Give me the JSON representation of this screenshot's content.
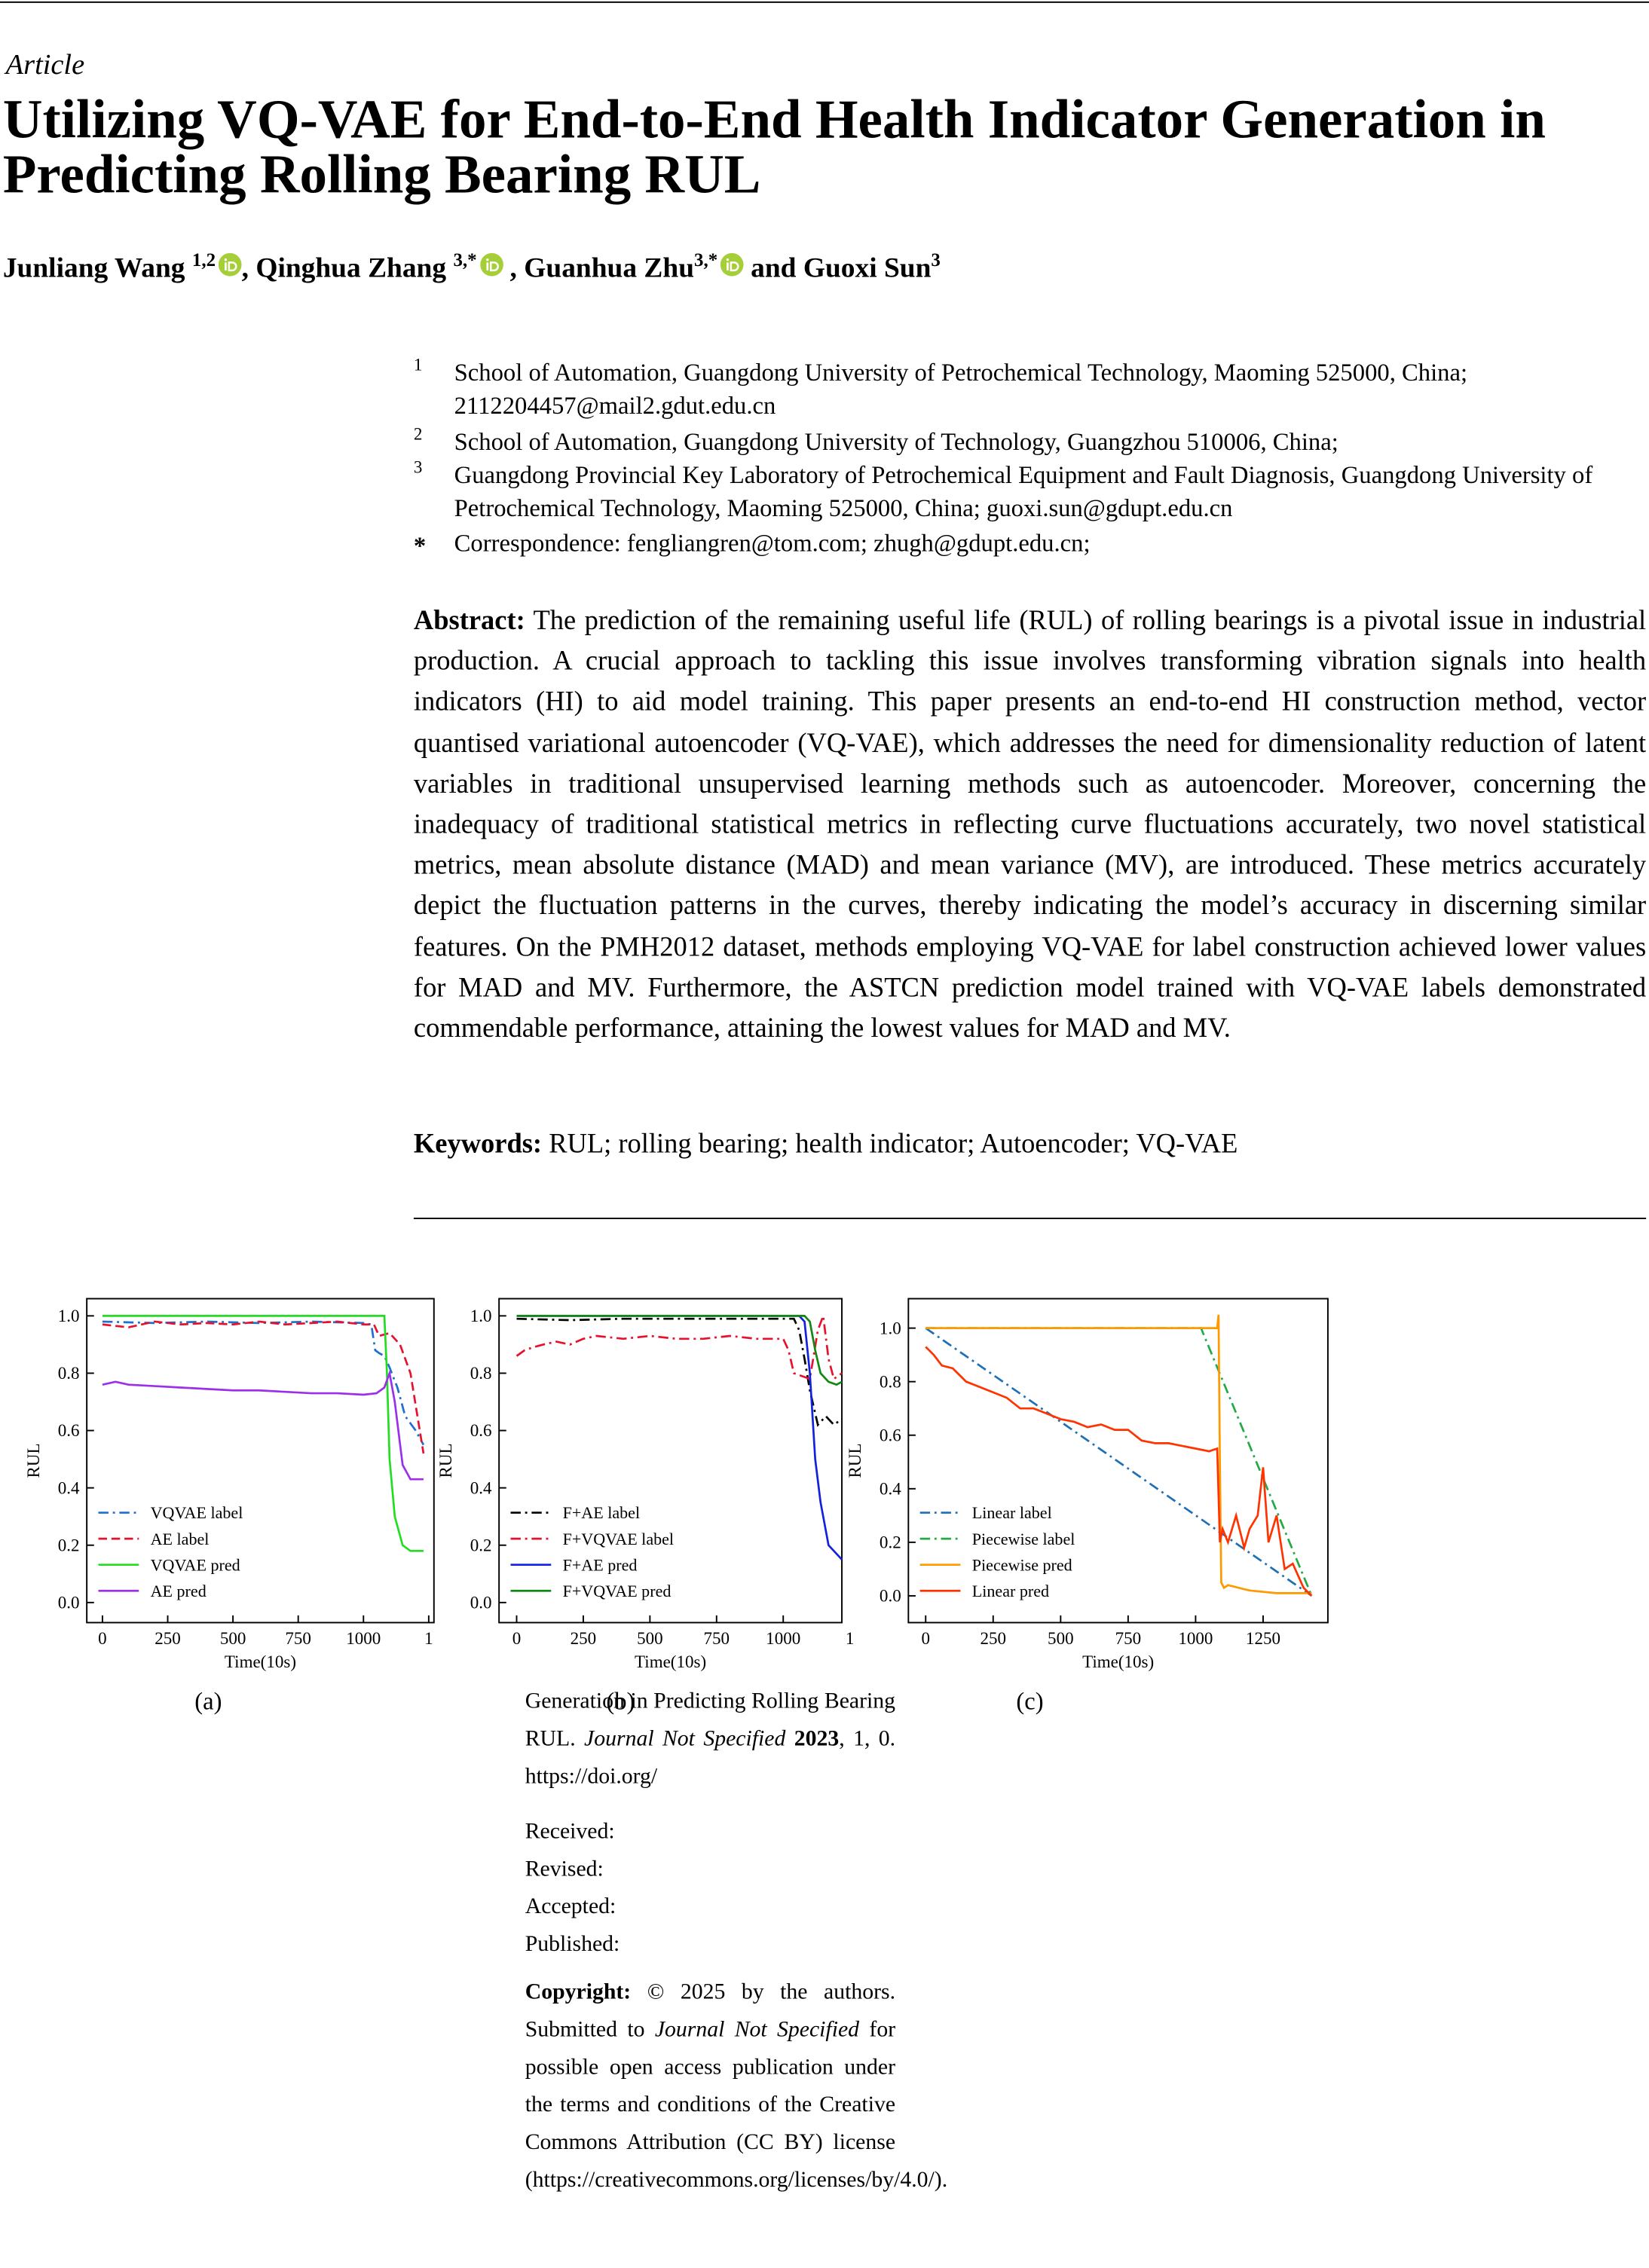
{
  "header": {
    "article_type": "Article",
    "title": "Utilizing VQ-VAE for End-to-End Health Indicator Generation in Predicting Rolling Bearing RUL"
  },
  "authors": [
    {
      "name": "Junliang Wang",
      "sup": "1,2",
      "sep": ","
    },
    {
      "name": "Qinghua Zhang",
      "sup": "3,*",
      "sep": ","
    },
    {
      "name": "Guanhua Zhu",
      "sup": "3,*",
      "sep": "and"
    },
    {
      "name": "Guoxi Sun",
      "sup": "3"
    }
  ],
  "affiliations": [
    {
      "mark": "1",
      "text": "School of Automation, Guangdong University of Petrochemical Technology, Maoming 525000, China; 2112204457@mail2.gdut.edu.cn"
    },
    {
      "mark": "2",
      "text": "School of Automation, Guangdong University of Technology, Guangzhou 510006, China;"
    },
    {
      "mark": "3",
      "text": "Guangdong Provincial Key Laboratory of Petrochemical Equipment and Fault Diagnosis, Guangdong University of Petrochemical Technology, Maoming 525000, China; guoxi.sun@gdupt.edu.cn"
    },
    {
      "mark": "*",
      "text": "Correspondence: fengliangren@tom.com; zhugh@gdupt.edu.cn;"
    }
  ],
  "abstract": {
    "label": "Abstract:",
    "text": "The prediction of the remaining useful life (RUL) of rolling bearings is a pivotal issue in industrial production. A crucial approach to tackling this issue involves transforming vibration signals into health indicators (HI) to aid model training. This paper presents an end-to-end HI construction method, vector quantised variational autoencoder (VQ-VAE), which addresses the need for dimensionality reduction of latent variables in traditional unsupervised learning methods such as autoencoder. Moreover, concerning the inadequacy of traditional statistical metrics in reflecting curve fluctuations accurately, two novel statistical metrics, mean absolute distance (MAD) and mean variance (MV), are introduced. These metrics accurately depict the fluctuation patterns in the curves, thereby indicating the model’s accuracy in discerning similar features. On the PMH2012 dataset, methods employing VQ-VAE for label construction achieved lower values for MAD and MV. Furthermore, the ASTCN prediction model trained with VQ-VAE labels demonstrated commendable performance, attaining the lowest values for MAD and MV."
  },
  "keywords": {
    "label": "Keywords:",
    "text": "RUL; rolling bearing; health indicator; Autoencoder; VQ-VAE"
  },
  "sidebar": {
    "cite_title": "Generation in Predicting Rolling Bearing RUL.",
    "cite_journal": "Journal Not Specified",
    "cite_year": "2023",
    "cite_rest": ", 1, 0.  https://doi.org/",
    "dates": [
      "Received:",
      "Revised:",
      "Accepted:",
      "Published:"
    ],
    "copyright_label": "Copyright:",
    "copyright_text1": "© 2025 by the authors. Submitted to",
    "copyright_journal": "Journal Not Specified",
    "copyright_text2": "for possible open access publication under the terms and conditions of the Creative Commons Attribution (CC BY) license (https://creativecommons.org/licenses/by/4.0/)."
  },
  "chart_data": [
    {
      "type": "line",
      "caption": "(a)",
      "x_label": "Time(10s)",
      "y_label": "RUL",
      "legend": "lower left",
      "xlim": [
        -60,
        1270
      ],
      "xticks": [
        0,
        250,
        500,
        750,
        1000,
        {
          "value": 1250,
          "label": "1"
        }
      ],
      "ylim": [
        -0.07,
        1.06
      ],
      "yticks": [
        {
          "value": 0,
          "label": "0.0"
        },
        0.2,
        0.4,
        0.6,
        0.8,
        {
          "value": 1,
          "label": "1.0"
        }
      ],
      "series": [
        {
          "name": "VQVAE label",
          "color": "#1f6fd0",
          "style": "dashdot",
          "x": [
            0,
            200,
            400,
            600,
            800,
            1000,
            1030,
            1045,
            1060,
            1080,
            1100,
            1130,
            1160,
            1200,
            1230
          ],
          "values": [
            0.98,
            0.975,
            0.98,
            0.975,
            0.98,
            0.975,
            0.97,
            0.88,
            0.87,
            0.86,
            0.82,
            0.75,
            0.65,
            0.6,
            0.55
          ]
        },
        {
          "name": "AE label",
          "color": "#e8112d",
          "style": "dashed",
          "x": [
            0,
            100,
            200,
            300,
            400,
            500,
            600,
            700,
            800,
            900,
            1000,
            1040,
            1060,
            1100,
            1140,
            1180,
            1230
          ],
          "values": [
            0.97,
            0.96,
            0.98,
            0.97,
            0.975,
            0.97,
            0.98,
            0.97,
            0.975,
            0.98,
            0.97,
            0.97,
            0.93,
            0.94,
            0.9,
            0.8,
            0.52
          ]
        },
        {
          "name": "VQVAE pred",
          "color": "#22dd22",
          "style": "solid",
          "x": [
            0,
            500,
            1000,
            1080,
            1090,
            1100,
            1120,
            1150,
            1180,
            1230
          ],
          "values": [
            1.0,
            1.0,
            1.0,
            1.0,
            0.8,
            0.5,
            0.3,
            0.2,
            0.18,
            0.18
          ]
        },
        {
          "name": "AE pred",
          "color": "#9b30e8",
          "style": "solid",
          "x": [
            0,
            50,
            100,
            200,
            300,
            400,
            500,
            600,
            700,
            800,
            900,
            1000,
            1050,
            1080,
            1100,
            1120,
            1150,
            1180,
            1230
          ],
          "values": [
            0.76,
            0.77,
            0.76,
            0.755,
            0.75,
            0.745,
            0.74,
            0.74,
            0.735,
            0.73,
            0.73,
            0.725,
            0.73,
            0.75,
            0.8,
            0.7,
            0.48,
            0.43,
            0.43
          ]
        }
      ]
    },
    {
      "type": "line",
      "caption": "(b)",
      "x_label": "Time(10s)",
      "y_label": "RUL",
      "legend": "lower left",
      "xlim": [
        -66,
        1220
      ],
      "xticks": [
        0,
        250,
        500,
        750,
        1000,
        {
          "value": 1250,
          "label": "1"
        }
      ],
      "ylim": [
        -0.07,
        1.06
      ],
      "yticks": [
        {
          "value": 0,
          "label": "0.0"
        },
        0.2,
        0.4,
        0.6,
        0.8,
        {
          "value": 1,
          "label": "1.0"
        }
      ],
      "series": [
        {
          "name": "F+AE label",
          "color": "#000000",
          "style": "dashdot",
          "x": [
            0,
            200,
            400,
            600,
            800,
            1000,
            1040,
            1060,
            1080,
            1100,
            1130,
            1160,
            1190,
            1220
          ],
          "values": [
            0.99,
            0.985,
            0.99,
            0.99,
            0.99,
            0.99,
            0.99,
            0.95,
            0.85,
            0.74,
            0.62,
            0.65,
            0.62,
            0.64
          ]
        },
        {
          "name": "F+VQVAE label",
          "color": "#e8112d",
          "style": "dashdot",
          "x": [
            0,
            30,
            60,
            100,
            150,
            200,
            250,
            300,
            400,
            500,
            600,
            700,
            800,
            900,
            1000,
            1020,
            1040,
            1070,
            1100,
            1130,
            1150,
            1170,
            1190,
            1220
          ],
          "values": [
            0.86,
            0.88,
            0.89,
            0.9,
            0.91,
            0.9,
            0.92,
            0.93,
            0.92,
            0.93,
            0.92,
            0.92,
            0.93,
            0.92,
            0.92,
            0.88,
            0.8,
            0.79,
            0.78,
            0.95,
            1.0,
            0.85,
            0.78,
            0.8
          ]
        },
        {
          "name": "F+AE pred",
          "color": "#1122dd",
          "style": "solid",
          "x": [
            0,
            500,
            1000,
            1060,
            1080,
            1100,
            1120,
            1140,
            1170,
            1200,
            1220
          ],
          "values": [
            1.0,
            1.0,
            1.0,
            1.0,
            0.98,
            0.8,
            0.5,
            0.35,
            0.2,
            0.17,
            0.15
          ]
        },
        {
          "name": "F+VQVAE pred",
          "color": "#118811",
          "style": "solid",
          "x": [
            0,
            500,
            1000,
            1080,
            1100,
            1120,
            1140,
            1170,
            1200,
            1220
          ],
          "values": [
            1.0,
            1.0,
            1.0,
            1.0,
            0.98,
            0.88,
            0.8,
            0.77,
            0.76,
            0.77
          ]
        }
      ]
    },
    {
      "type": "line",
      "caption": "(c)",
      "x_label": "Time(10s)",
      "y_label": "RUL",
      "legend": "lower left",
      "xlim": [
        -64,
        1490
      ],
      "xticks": [
        0,
        250,
        500,
        750,
        1000,
        1250
      ],
      "ylim": [
        -0.1,
        1.11
      ],
      "yticks": [
        {
          "value": 0,
          "label": "0.0"
        },
        0.2,
        0.4,
        0.6,
        0.8,
        {
          "value": 1,
          "label": "1.0"
        }
      ],
      "series": [
        {
          "name": "Linear label",
          "color": "#1f6fb4",
          "style": "dashdot",
          "x": [
            0,
            1430
          ],
          "values": [
            1,
            0
          ]
        },
        {
          "name": "Piecewise label",
          "color": "#22aa44",
          "style": "dashdot",
          "x": [
            0,
            1020,
            1430
          ],
          "values": [
            1,
            1,
            0
          ]
        },
        {
          "name": "Piecewise pred",
          "color": "#ff9900",
          "style": "solid",
          "x": [
            0,
            500,
            1000,
            1080,
            1085,
            1090,
            1095,
            1105,
            1120,
            1200,
            1300,
            1400,
            1430
          ],
          "values": [
            1,
            1,
            1,
            1,
            1.05,
            0.5,
            0.05,
            0.03,
            0.04,
            0.02,
            0.01,
            0.01,
            0.01
          ]
        },
        {
          "name": "Linear pred",
          "color": "#ff3300",
          "style": "solid",
          "x": [
            0,
            30,
            60,
            100,
            150,
            200,
            250,
            300,
            350,
            400,
            450,
            500,
            550,
            600,
            650,
            700,
            750,
            800,
            850,
            900,
            950,
            1000,
            1050,
            1080,
            1090,
            1100,
            1120,
            1150,
            1180,
            1200,
            1230,
            1250,
            1270,
            1300,
            1330,
            1360,
            1400,
            1430
          ],
          "values": [
            0.93,
            0.9,
            0.86,
            0.85,
            0.8,
            0.78,
            0.76,
            0.74,
            0.7,
            0.7,
            0.68,
            0.66,
            0.65,
            0.63,
            0.64,
            0.62,
            0.62,
            0.58,
            0.57,
            0.57,
            0.56,
            0.55,
            0.54,
            0.55,
            0.2,
            0.25,
            0.2,
            0.3,
            0.18,
            0.25,
            0.3,
            0.48,
            0.2,
            0.3,
            0.1,
            0.12,
            0.03,
            0.0
          ]
        }
      ]
    }
  ]
}
